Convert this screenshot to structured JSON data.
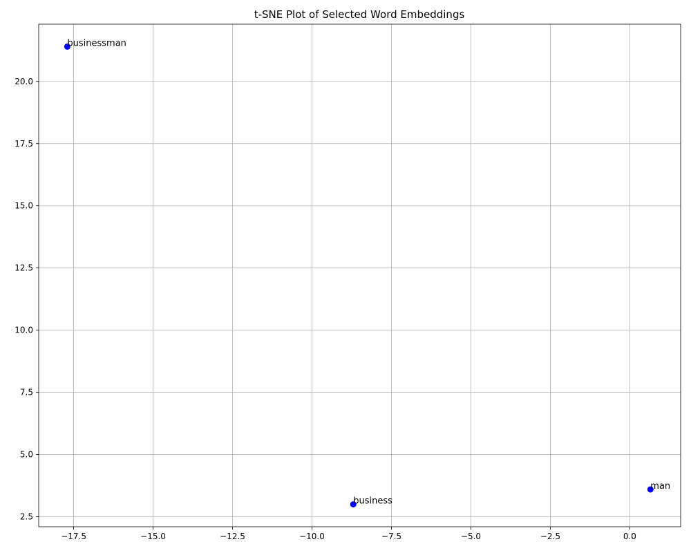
{
  "chart_data": {
    "type": "scatter",
    "title": "t-SNE Plot of Selected Word Embeddings",
    "xlabel": "",
    "ylabel": "",
    "xlim": [
      -18.6,
      1.6
    ],
    "ylim": [
      2.1,
      22.3
    ],
    "xticks": [
      -17.5,
      -15.0,
      -12.5,
      -10.0,
      -7.5,
      -5.0,
      -2.5,
      0.0
    ],
    "xtick_labels": [
      "−17.5",
      "−15.0",
      "−12.5",
      "−10.0",
      "−7.5",
      "−5.0",
      "−2.5",
      "0.0"
    ],
    "yticks": [
      2.5,
      5.0,
      7.5,
      10.0,
      12.5,
      15.0,
      17.5,
      20.0
    ],
    "ytick_labels": [
      "2.5",
      "5.0",
      "7.5",
      "10.0",
      "12.5",
      "15.0",
      "17.5",
      "20.0"
    ],
    "grid": true,
    "marker_color": "#0000ff",
    "points": [
      {
        "label": "businessman",
        "x": -17.7,
        "y": 21.4
      },
      {
        "label": "business",
        "x": -8.7,
        "y": 3.0
      },
      {
        "label": "man",
        "x": 0.65,
        "y": 3.6
      }
    ]
  }
}
